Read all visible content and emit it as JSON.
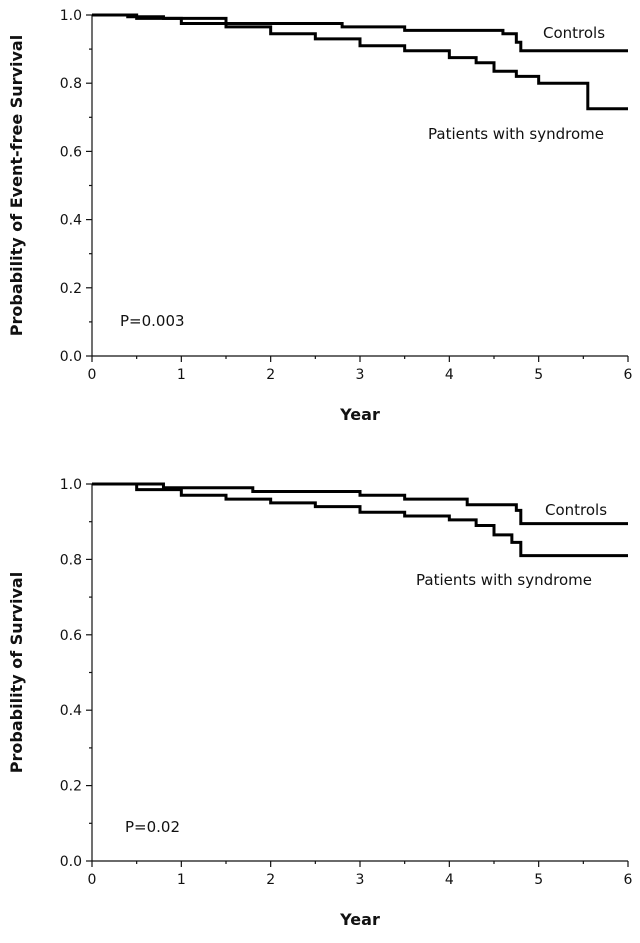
{
  "chart_data": [
    {
      "type": "line",
      "step": true,
      "ylabel": "Probability of Event-free Survival",
      "xlabel": "Year",
      "xlim": [
        0,
        6
      ],
      "ylim": [
        0,
        1
      ],
      "xticks": [
        "0",
        "1",
        "2",
        "3",
        "4",
        "5",
        "6"
      ],
      "yticks": [
        "0.0",
        "0.2",
        "0.4",
        "0.6",
        "0.8",
        "1.0"
      ],
      "p_value": "P=0.003",
      "series": [
        {
          "name": "Controls",
          "x": [
            0,
            0.4,
            0.8,
            1.5,
            2.8,
            3.5,
            4.6,
            4.75,
            4.8,
            6.0
          ],
          "y": [
            1.0,
            0.995,
            0.99,
            0.975,
            0.965,
            0.955,
            0.945,
            0.92,
            0.895,
            0.895
          ]
        },
        {
          "name": "Patients with syndrome",
          "x": [
            0,
            0.5,
            1.0,
            1.5,
            2.0,
            2.5,
            3.0,
            3.5,
            4.0,
            4.3,
            4.5,
            4.75,
            5.0,
            5.5,
            5.55,
            6.0
          ],
          "y": [
            1.0,
            0.99,
            0.975,
            0.965,
            0.945,
            0.93,
            0.91,
            0.895,
            0.875,
            0.86,
            0.835,
            0.82,
            0.8,
            0.8,
            0.725,
            0.725
          ]
        }
      ]
    },
    {
      "type": "line",
      "step": true,
      "ylabel": "Probability of Survival",
      "xlabel": "Year",
      "xlim": [
        0,
        6
      ],
      "ylim": [
        0,
        1
      ],
      "xticks": [
        "0",
        "1",
        "2",
        "3",
        "4",
        "5",
        "6"
      ],
      "yticks": [
        "0.0",
        "0.2",
        "0.4",
        "0.6",
        "0.8",
        "1.0"
      ],
      "p_value": "P=0.02",
      "series": [
        {
          "name": "Controls",
          "x": [
            0,
            0.8,
            1.8,
            3.0,
            3.5,
            4.2,
            4.75,
            4.8,
            6.0
          ],
          "y": [
            1.0,
            0.99,
            0.98,
            0.97,
            0.96,
            0.945,
            0.93,
            0.895,
            0.895
          ]
        },
        {
          "name": "Patients with syndrome",
          "x": [
            0,
            0.5,
            1.0,
            1.5,
            2.0,
            2.5,
            3.0,
            3.5,
            4.0,
            4.3,
            4.5,
            4.7,
            4.8,
            6.0
          ],
          "y": [
            1.0,
            0.985,
            0.97,
            0.96,
            0.95,
            0.94,
            0.925,
            0.915,
            0.905,
            0.89,
            0.865,
            0.845,
            0.81,
            0.81
          ]
        }
      ]
    }
  ]
}
